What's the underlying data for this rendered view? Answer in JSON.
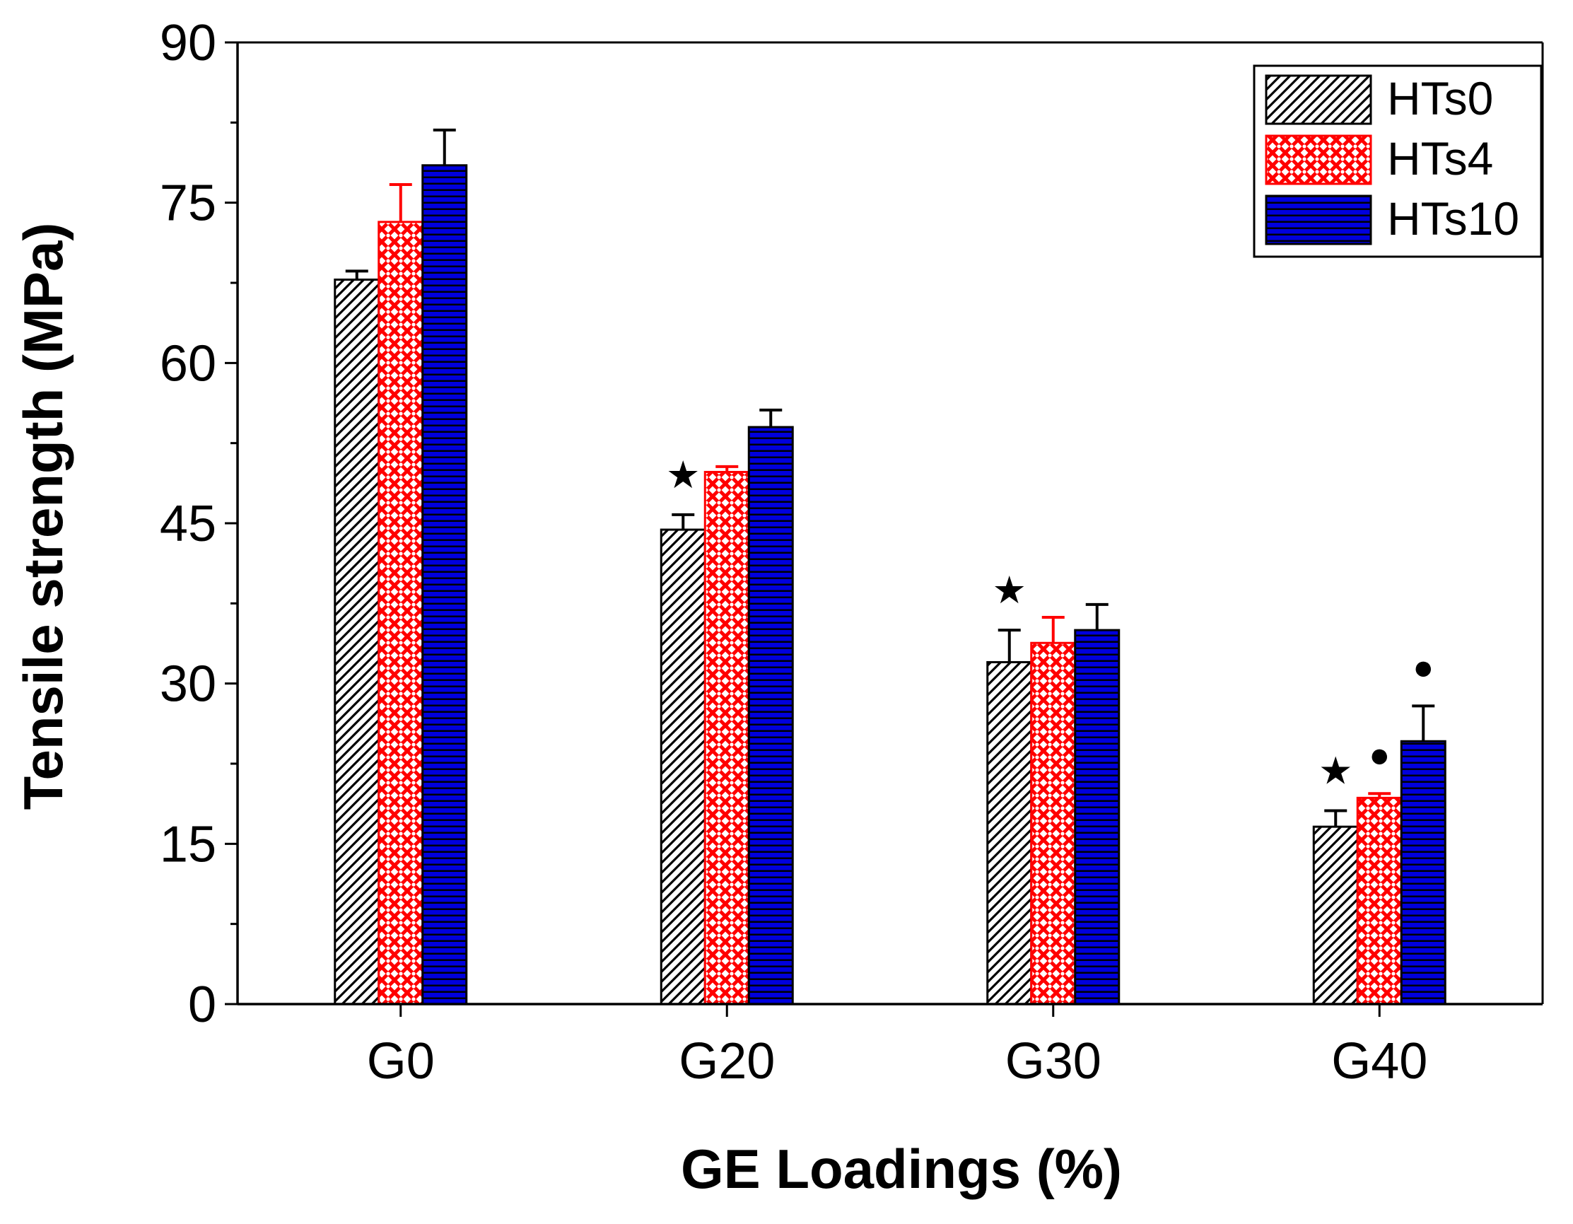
{
  "chart_data": {
    "type": "bar",
    "title": "",
    "xlabel": "GE  Loadings (%)",
    "ylabel": "Tensile strength (MPa)",
    "ylim": [
      0,
      90
    ],
    "yticks": [
      0,
      15,
      30,
      45,
      60,
      75,
      90
    ],
    "yticks_labels": [
      "0",
      "15",
      "30",
      "45",
      "60",
      "75",
      "90"
    ],
    "categories": [
      "G0",
      "G20",
      "G30",
      "G40"
    ],
    "legend_position": "top-right",
    "grid": false,
    "series": [
      {
        "name": "HTs0",
        "pattern": "diagonal-hatch",
        "color": "#000000",
        "fill": "#ffffff",
        "values": [
          67.8,
          44.4,
          32.0,
          16.6
        ],
        "errors": [
          0.8,
          1.4,
          3.0,
          1.5
        ],
        "markers": [
          "",
          "★",
          "★",
          "★"
        ]
      },
      {
        "name": "HTs4",
        "pattern": "red-cross",
        "color": "#ff0000",
        "fill": "#ffffff",
        "values": [
          73.2,
          49.8,
          33.8,
          19.3
        ],
        "errors": [
          3.5,
          0.5,
          2.4,
          0.4
        ],
        "markers": [
          "",
          "",
          "",
          "●"
        ]
      },
      {
        "name": "HTs10",
        "pattern": "blue-horizontal",
        "color": "#0000dd",
        "fill": "#000000",
        "values": [
          78.5,
          54.0,
          35.0,
          24.6
        ],
        "errors": [
          3.3,
          1.6,
          2.4,
          3.3
        ],
        "markers": [
          "",
          "",
          "",
          "●"
        ]
      }
    ]
  }
}
